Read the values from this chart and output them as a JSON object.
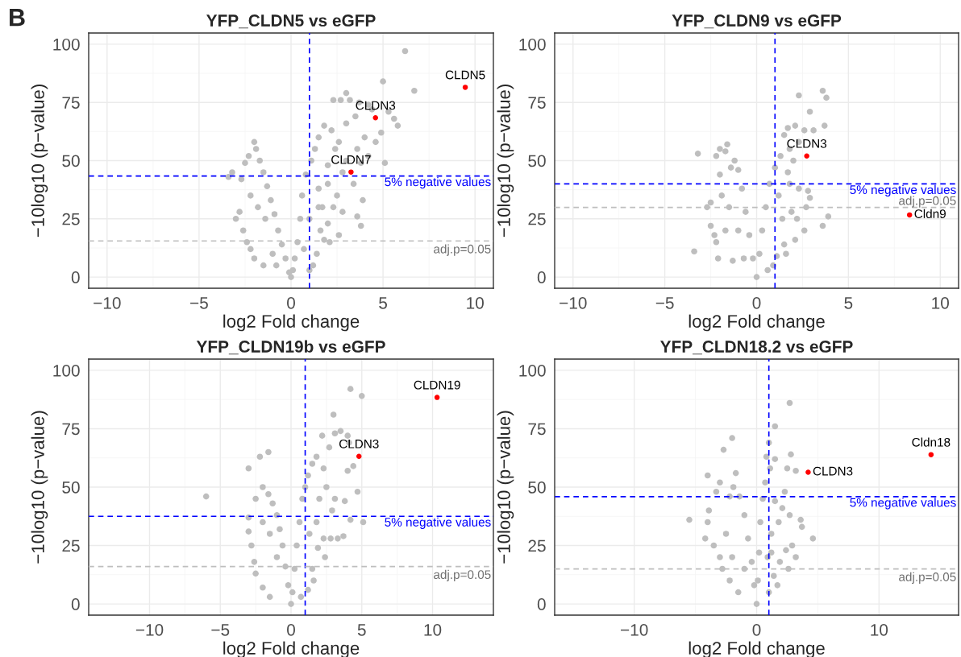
{
  "chart_data": [
    {
      "type": "scatter",
      "title": "YFP_CLDN5 vs eGFP",
      "xlabel": "log2 Fold change",
      "ylabel": "−10log10 (p−value)",
      "xlim": [
        -11,
        11
      ],
      "ylim": [
        -4.8,
        104.8
      ],
      "xticks": [
        -10,
        -5,
        0,
        5,
        10
      ],
      "yticks": [
        0,
        25,
        50,
        75,
        100
      ],
      "grid": true,
      "series": [
        {
          "color": "#bebebe",
          "x": [
            6.2,
            5.0,
            6.7,
            4.4,
            5.3,
            5.6,
            5.8,
            4.2,
            3.7,
            3.2,
            3.0,
            2.7,
            2.3,
            3.5,
            3.0,
            4.0,
            4.9,
            4.6,
            3.6,
            4.2,
            3.8,
            5.1,
            3.4,
            3.9,
            3.6,
            3.8,
            2.0,
            2.5,
            2.8,
            2.0,
            1.6,
            1.8,
            2.6,
            1.4,
            1.2,
            1.0,
            1.5,
            1.8,
            2.2,
            2.6,
            1.3,
            1.1,
            0.8,
            0.6,
            0.5,
            0.35,
            0.2,
            0.1,
            0,
            -0.1,
            -0.3,
            -0.5,
            -0.7,
            -0.9,
            -1.1,
            -1.3,
            -1.5,
            -1.7,
            -1.9,
            -2.0,
            -2.5,
            -2.3,
            -2.7,
            -3.2,
            -3.4,
            -2.8,
            -3.0,
            -2.6,
            -2.4,
            -2.2,
            -2.0,
            -1.5,
            -1.0,
            -1.8,
            -2.2,
            -1.4,
            -0.8,
            0.7,
            1.0,
            1.5,
            2.0,
            2.4,
            3.0,
            2.8,
            1.7,
            2.3,
            2.1,
            1.5
          ],
          "values": [
            97,
            84,
            80,
            72,
            71,
            68,
            65,
            74,
            75,
            76,
            79,
            76,
            76,
            69,
            66,
            60,
            62,
            58,
            55,
            52,
            49,
            49,
            40,
            33,
            26,
            22,
            40,
            35,
            28,
            23,
            20,
            16,
            18,
            10,
            5,
            3,
            60,
            65,
            63,
            58,
            55,
            50,
            44,
            35,
            25,
            15,
            8,
            3,
            0,
            2,
            8,
            14,
            20,
            27,
            33,
            39,
            45,
            50,
            55,
            58,
            49,
            52,
            42,
            45,
            43,
            28,
            25,
            20,
            15,
            12,
            8,
            5,
            10,
            30,
            35,
            25,
            5,
            12,
            25,
            38,
            48,
            55,
            50,
            45,
            30,
            30,
            15,
            30
          ]
        },
        {
          "color": "#ff0000",
          "x": [
            9.47,
            4.59,
            3.26
          ],
          "values": [
            81.5,
            68.4,
            45.1
          ]
        }
      ],
      "annotations": [
        "B",
        {
          "text": "CLDN5",
          "x": 9.47,
          "y": 81.5
        },
        {
          "text": "CLDN3",
          "x": 4.59,
          "y": 68.4
        },
        {
          "text": "CLDN7",
          "x": 3.26,
          "y": 45.1
        },
        {
          "text": "adj.p=0.05",
          "x": 11,
          "y": 15.5
        }
      ],
      "ref_lines": [
        {
          "axis": "x",
          "value": 1,
          "color": "#0000ff",
          "line_style": "dashed"
        },
        {
          "axis": "y",
          "value": 43.4,
          "label": "5% negative values",
          "color": "#0000ff",
          "line_style": "dashed"
        },
        {
          "axis": "y",
          "value": 15.5,
          "color": "#bebebe",
          "line_style": "dashed"
        }
      ]
    },
    {
      "type": "scatter",
      "title": "YFP_CLDN9 vs eGFP",
      "xlabel": "log2 Fold change",
      "ylabel": "−10log10 (p−value)",
      "xlim": [
        -11,
        11
      ],
      "ylim": [
        -4.8,
        104.8
      ],
      "xticks": [
        -10,
        -5,
        0,
        5,
        10
      ],
      "yticks": [
        0,
        25,
        50,
        75,
        100
      ],
      "grid": true,
      "series": [
        {
          "color": "#bebebe",
          "x": [
            3.6,
            2.3,
            3.8,
            2.9,
            3.7,
            2.1,
            1.7,
            2.6,
            3.1,
            1.5,
            2.3,
            1.8,
            1.3,
            1.0,
            0.7,
            0.5,
            0.3,
            0.15,
            0,
            -0.2,
            -0.4,
            -0.6,
            -0.8,
            -1.0,
            -1.2,
            -1.6,
            -1.7,
            -2.0,
            -3.2,
            -2.2,
            -1.4,
            -2.0,
            -2.5,
            -2.7,
            -2.5,
            -2.3,
            -2.2,
            -3.4,
            -2.1,
            -1.3,
            -1.7,
            -1.9,
            -1.5,
            -1.0,
            -0.7,
            1.2,
            1.8,
            2.3,
            2.8,
            2.9,
            1.9,
            2.7,
            3.9,
            3.6,
            2.6,
            2.1,
            1.5,
            1.6,
            1.1,
            0.9,
            0.6,
            1.4,
            2.2,
            1.7,
            2.0
          ],
          "values": [
            80,
            78,
            77,
            71,
            65,
            65,
            64,
            63,
            63,
            61,
            58,
            55,
            52,
            47,
            40,
            30,
            20,
            10,
            0,
            8,
            18,
            28,
            38,
            46,
            50,
            57,
            54,
            55,
            53,
            52,
            47,
            44,
            32,
            30,
            22,
            18,
            15,
            11,
            8,
            7,
            20,
            35,
            30,
            20,
            8,
            35,
            40,
            38,
            37,
            34,
            28,
            30,
            26,
            22,
            20,
            16,
            14,
            10,
            9,
            5,
            3,
            25,
            25,
            45,
            50
          ]
        },
        {
          "color": "#ff0000",
          "x": [
            2.73,
            8.33
          ],
          "values": [
            52.0,
            26.7
          ]
        }
      ],
      "annotations": [
        {
          "text": "CLDN3",
          "x": 2.73,
          "y": 52.0
        },
        {
          "text": "Cldn9",
          "x": 8.33,
          "y": 26.7
        },
        {
          "text": "adj.p=0.05",
          "x": 11,
          "y": 29.9
        }
      ],
      "ref_lines": [
        {
          "axis": "x",
          "value": 1,
          "color": "#0000ff",
          "line_style": "dashed"
        },
        {
          "axis": "y",
          "value": 40.0,
          "label": "5% negative values",
          "color": "#0000ff",
          "line_style": "dashed"
        },
        {
          "axis": "y",
          "value": 29.9,
          "color": "#bebebe",
          "line_style": "dashed"
        }
      ]
    },
    {
      "type": "scatter",
      "title": "YFP_CLDN19b vs eGFP",
      "xlabel": "log2 Fold change",
      "ylabel": "−10log10 (p−value)",
      "xlim": [
        -14.3,
        14.3
      ],
      "ylim": [
        -4.8,
        104.8
      ],
      "xticks": [
        -10,
        -5,
        0,
        5,
        10
      ],
      "yticks": [
        0,
        25,
        50,
        75,
        100
      ],
      "grid": true,
      "series": [
        {
          "color": "#bebebe",
          "x": [
            4.2,
            5.0,
            3.0,
            3.5,
            2.2,
            3.1,
            4.0,
            4.1,
            2.7,
            1.8,
            1.5,
            1.2,
            1.0,
            0.8,
            0.6,
            0.4,
            0.25,
            0.1,
            0,
            -0.2,
            -0.4,
            -0.6,
            -0.8,
            -1.0,
            -1.3,
            -1.6,
            -2.2,
            -1.6,
            -3.0,
            -2.0,
            -2.5,
            -3.0,
            -3.0,
            -2.8,
            -2.6,
            -2.5,
            -2.0,
            -1.5,
            -6.0,
            -1.0,
            -1.5,
            -2.0,
            2.3,
            2.5,
            3.1,
            2.9,
            3.8,
            4.7,
            4.2,
            5.1,
            3.7,
            3.3,
            2.3,
            1.9,
            2.4,
            2.8,
            1.5,
            1.6,
            1.2,
            0.7,
            1.8,
            1.3,
            2.0,
            4.0,
            4.4
          ],
          "values": [
            92,
            89,
            81,
            74,
            72,
            73,
            72,
            69,
            67,
            63,
            60,
            55,
            50,
            45,
            35,
            25,
            15,
            5,
            0,
            8,
            16,
            25,
            32,
            38,
            43,
            47,
            63,
            65,
            58,
            50,
            45,
            37,
            31,
            25,
            18,
            13,
            7,
            3,
            46,
            20,
            30,
            35,
            58,
            50,
            45,
            40,
            44,
            48,
            36,
            35,
            29,
            28,
            28,
            24,
            20,
            28,
            15,
            10,
            6,
            3,
            35,
            30,
            45,
            57,
            59
          ]
        },
        {
          "color": "#ff0000",
          "x": [
            10.32,
            4.8
          ],
          "values": [
            88.4,
            63.2
          ]
        }
      ],
      "annotations": [
        {
          "text": "CLDN19",
          "x": 10.32,
          "y": 88.4
        },
        {
          "text": "CLDN3",
          "x": 4.8,
          "y": 63.2
        },
        {
          "text": "adj.p=0.05",
          "x": 14.3,
          "y": 16.0
        }
      ],
      "ref_lines": [
        {
          "axis": "x",
          "value": 1,
          "color": "#0000ff",
          "line_style": "dashed"
        },
        {
          "axis": "y",
          "value": 37.5,
          "label": "5% negative values",
          "color": "#0000ff",
          "line_style": "dashed"
        },
        {
          "axis": "y",
          "value": 16.0,
          "color": "#bebebe",
          "line_style": "dashed"
        }
      ]
    },
    {
      "type": "scatter",
      "title": "YFP_CLDN18.2 vs eGFP",
      "xlabel": "log2 Fold change",
      "ylabel": "−10log10 (p−value)",
      "xlim": [
        -16.5,
        16.5
      ],
      "ylim": [
        -4.8,
        104.8
      ],
      "xticks": [
        -10,
        0,
        10
      ],
      "yticks": [
        0,
        25,
        50,
        75,
        100
      ],
      "grid": true,
      "series": [
        {
          "color": "#bebebe",
          "x": [
            2.7,
            1.0,
            1.5,
            0.8,
            -2.0,
            -2.7,
            2.8,
            1.5,
            1.1,
            0.7,
            0.5,
            0.3,
            0.2,
            0.1,
            0,
            -0.2,
            -0.4,
            -0.7,
            -1.0,
            -1.4,
            -1.9,
            -1.7,
            -3.0,
            -4.0,
            -2.2,
            -3.3,
            -3.9,
            -5.5,
            -4.2,
            -4.0,
            -2.5,
            -3.5,
            -2.8,
            -2.2,
            -1.5,
            -1.0,
            -2.0,
            -3.0,
            2.3,
            1.5,
            2.1,
            2.7,
            3.6,
            3.7,
            4.6,
            2.9,
            2.4,
            3.2,
            1.9,
            2.6,
            1.4,
            1.7,
            1.0,
            1.2,
            1.8,
            0.9,
            3.2,
            2.5,
            1.2
          ],
          "values": [
            86,
            69,
            76,
            63,
            71,
            66,
            64,
            62,
            58,
            52,
            45,
            35,
            22,
            10,
            0,
            8,
            18,
            28,
            38,
            46,
            50,
            56,
            52,
            55,
            46,
            48,
            40,
            36,
            28,
            35,
            30,
            25,
            15,
            10,
            5,
            15,
            20,
            20,
            48,
            44,
            41,
            38,
            36,
            33,
            28,
            25,
            23,
            20,
            18,
            15,
            12,
            8,
            5,
            30,
            35,
            20,
            57,
            58,
            22
          ]
        },
        {
          "color": "#ff0000",
          "x": [
            4.21,
            14.25
          ],
          "values": [
            56.4,
            63.9
          ]
        }
      ],
      "annotations": [
        {
          "text": "CLDN3",
          "x": 4.21,
          "y": 56.4
        },
        {
          "text": "Cldn18",
          "x": 14.25,
          "y": 63.9
        },
        {
          "text": "adj.p=0.05",
          "x": 16.5,
          "y": 15.0
        }
      ],
      "ref_lines": [
        {
          "axis": "x",
          "value": 1,
          "color": "#0000ff",
          "line_style": "dashed"
        },
        {
          "axis": "y",
          "value": 45.9,
          "label": "5% negative values",
          "color": "#0000ff",
          "line_style": "dashed"
        },
        {
          "axis": "y",
          "value": 15.0,
          "color": "#bebebe",
          "line_style": "dashed"
        }
      ]
    }
  ]
}
